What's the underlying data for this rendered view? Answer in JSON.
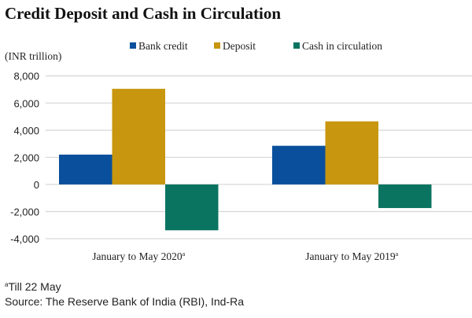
{
  "chart_data": {
    "type": "bar",
    "title": "Credit Deposit and Cash in Circulation",
    "ylabel": "(INR trillion)",
    "xlabel": "",
    "categories": [
      "January to May 2020",
      "January to May 2019"
    ],
    "category_superscript": "a",
    "series": [
      {
        "name": "Bank credit",
        "color": "#0a4f9c",
        "values": [
          2200,
          2850
        ]
      },
      {
        "name": "Deposit",
        "color": "#c8960f",
        "values": [
          7050,
          4650
        ]
      },
      {
        "name": "Cash in circulation",
        "color": "#0a7461",
        "values": [
          -3380,
          -1740
        ]
      }
    ],
    "ylim": [
      -4000,
      8000
    ],
    "yticks": [
      8000,
      6000,
      4000,
      2000,
      0,
      -2000,
      -4000
    ],
    "ytick_labels": [
      "8,000",
      "6,000",
      "4,000",
      "2,000",
      "0",
      "-2,000",
      "-4,000"
    ],
    "grid": true,
    "legend_position": "top",
    "footnote_marker": "a",
    "footnote": "Till 22 May",
    "source": "Source: The Reserve Bank of India (RBI), Ind-Ra"
  }
}
